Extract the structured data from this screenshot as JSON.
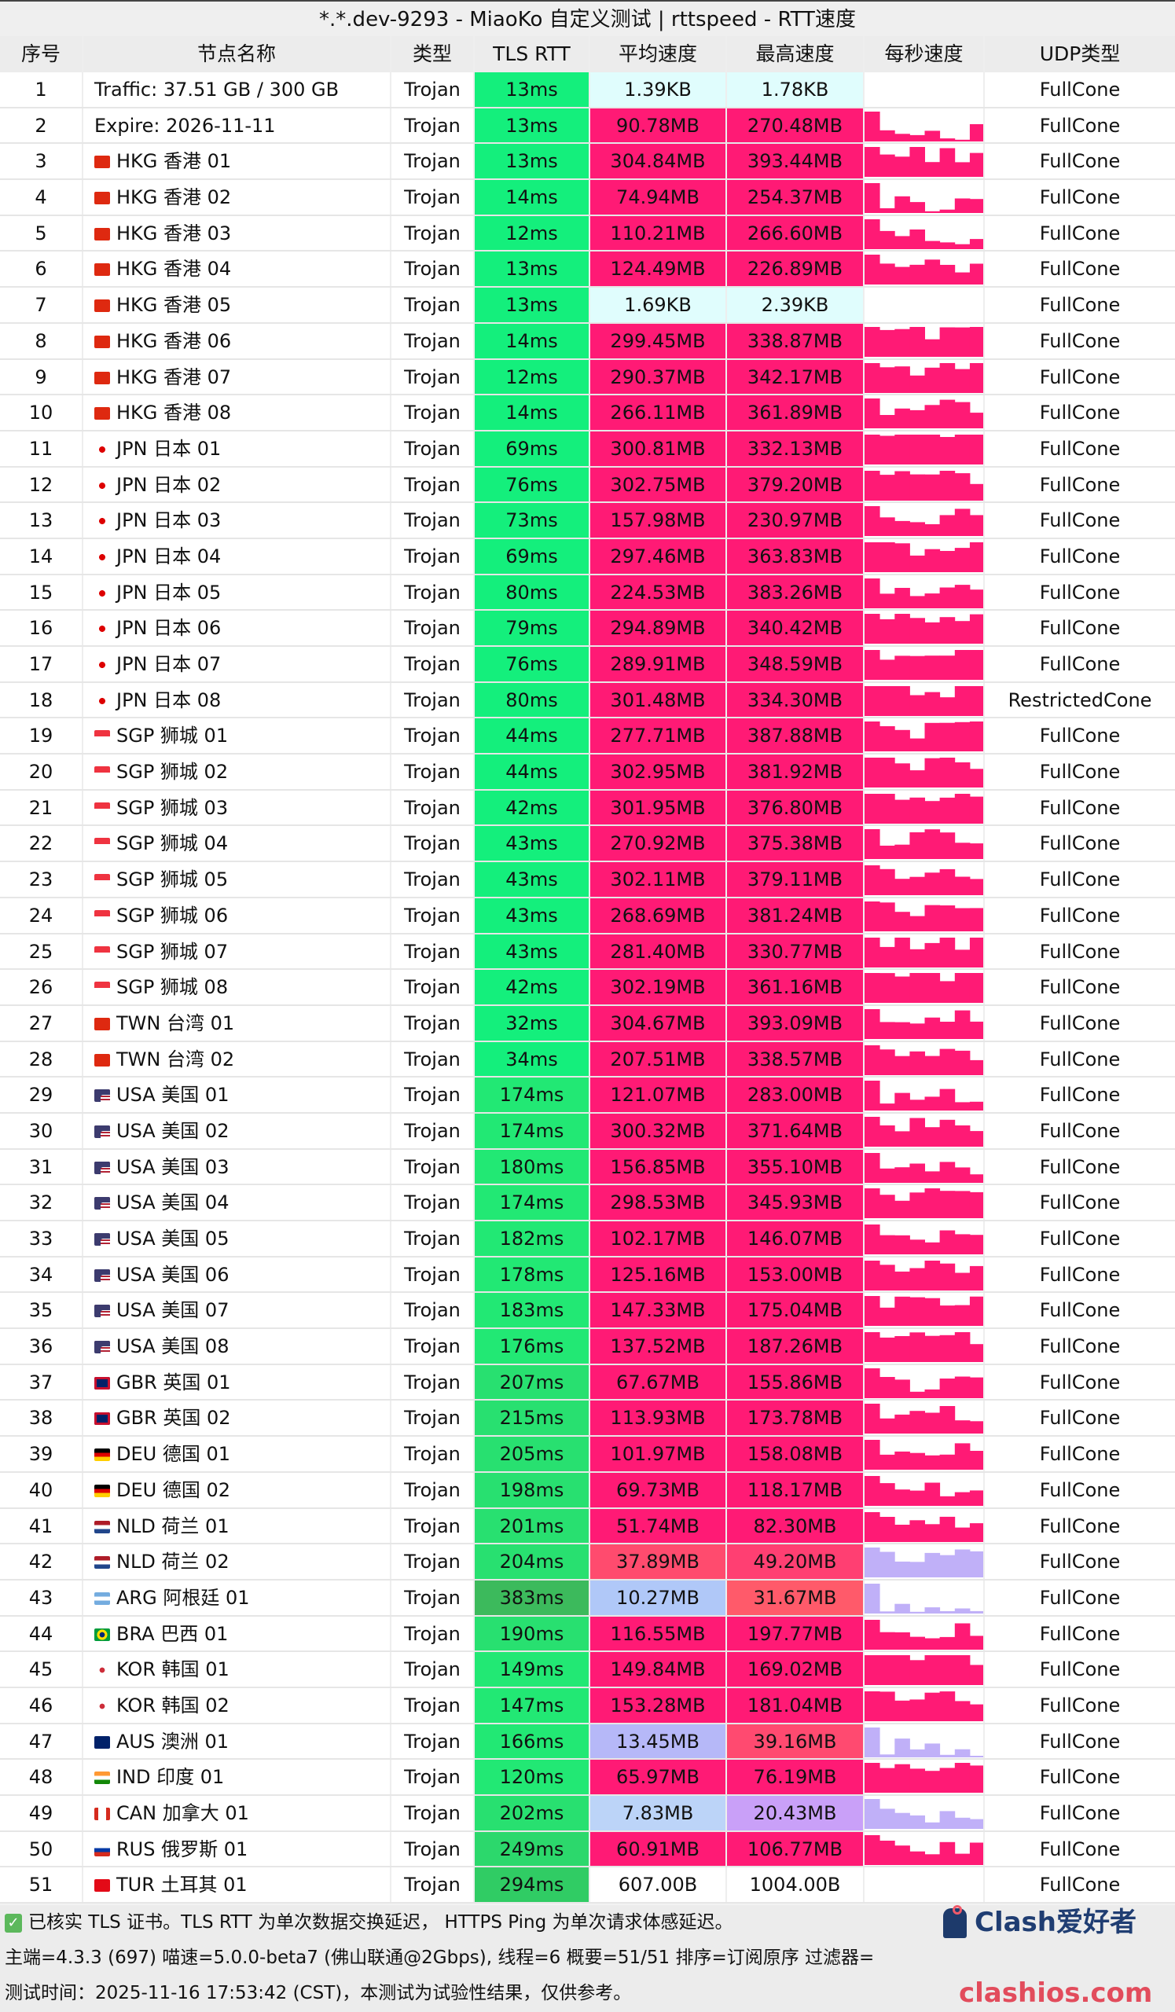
{
  "title": "*.*.dev-9293 - MiaoKo 自定义测试 | rttspeed - RTT速度",
  "headers": [
    "序号",
    "节点名称",
    "类型",
    "TLS RTT",
    "平均速度",
    "最高速度",
    "每秒速度",
    "UDP类型"
  ],
  "rows": [
    {
      "no": "1",
      "name": "Traffic: 37.51 GB / 300 GB",
      "flag": "",
      "type": "Trojan",
      "rtt": "13ms",
      "avg": "1.39KB",
      "max": "1.78KB",
      "udp": "FullCone",
      "rtt_color": "#14ef7c",
      "avg_color": "#e0fdfd",
      "max_color": "#e0fdfd"
    },
    {
      "no": "2",
      "name": "Expire: 2026-11-11",
      "flag": "",
      "type": "Trojan",
      "rtt": "13ms",
      "avg": "90.78MB",
      "max": "270.48MB",
      "udp": "FullCone",
      "rtt_color": "#14ef7c",
      "avg_color": "#ff1a75",
      "max_color": "#ff1a75"
    },
    {
      "no": "3",
      "name": "HKG 香港 01",
      "flag": "hk",
      "type": "Trojan",
      "rtt": "13ms",
      "avg": "304.84MB",
      "max": "393.44MB",
      "udp": "FullCone",
      "rtt_color": "#14ef7c",
      "avg_color": "#ff1a75",
      "max_color": "#ff1a75"
    },
    {
      "no": "4",
      "name": "HKG 香港 02",
      "flag": "hk",
      "type": "Trojan",
      "rtt": "14ms",
      "avg": "74.94MB",
      "max": "254.37MB",
      "udp": "FullCone",
      "rtt_color": "#14ef7c",
      "avg_color": "#ff1a75",
      "max_color": "#ff1a75"
    },
    {
      "no": "5",
      "name": "HKG 香港 03",
      "flag": "hk",
      "type": "Trojan",
      "rtt": "12ms",
      "avg": "110.21MB",
      "max": "266.60MB",
      "udp": "FullCone",
      "rtt_color": "#14ef7c",
      "avg_color": "#ff1a75",
      "max_color": "#ff1a75"
    },
    {
      "no": "6",
      "name": "HKG 香港 04",
      "flag": "hk",
      "type": "Trojan",
      "rtt": "13ms",
      "avg": "124.49MB",
      "max": "226.89MB",
      "udp": "FullCone",
      "rtt_color": "#14ef7c",
      "avg_color": "#ff1a75",
      "max_color": "#ff1a75"
    },
    {
      "no": "7",
      "name": "HKG 香港 05",
      "flag": "hk",
      "type": "Trojan",
      "rtt": "13ms",
      "avg": "1.69KB",
      "max": "2.39KB",
      "udp": "FullCone",
      "rtt_color": "#14ef7c",
      "avg_color": "#e0fdfd",
      "max_color": "#e0fdfd"
    },
    {
      "no": "8",
      "name": "HKG 香港 06",
      "flag": "hk",
      "type": "Trojan",
      "rtt": "14ms",
      "avg": "299.45MB",
      "max": "338.87MB",
      "udp": "FullCone",
      "rtt_color": "#14ef7c",
      "avg_color": "#ff1a75",
      "max_color": "#ff1a75"
    },
    {
      "no": "9",
      "name": "HKG 香港 07",
      "flag": "hk",
      "type": "Trojan",
      "rtt": "12ms",
      "avg": "290.37MB",
      "max": "342.17MB",
      "udp": "FullCone",
      "rtt_color": "#14ef7c",
      "avg_color": "#ff1a75",
      "max_color": "#ff1a75"
    },
    {
      "no": "10",
      "name": "HKG 香港 08",
      "flag": "hk",
      "type": "Trojan",
      "rtt": "14ms",
      "avg": "266.11MB",
      "max": "361.89MB",
      "udp": "FullCone",
      "rtt_color": "#14ef7c",
      "avg_color": "#ff1a75",
      "max_color": "#ff1a75"
    },
    {
      "no": "11",
      "name": "JPN 日本 01",
      "flag": "jp",
      "type": "Trojan",
      "rtt": "69ms",
      "avg": "300.81MB",
      "max": "332.13MB",
      "udp": "FullCone",
      "rtt_color": "#14ef7c",
      "avg_color": "#ff1a75",
      "max_color": "#ff1a75"
    },
    {
      "no": "12",
      "name": "JPN 日本 02",
      "flag": "jp",
      "type": "Trojan",
      "rtt": "76ms",
      "avg": "302.75MB",
      "max": "379.20MB",
      "udp": "FullCone",
      "rtt_color": "#14ef7c",
      "avg_color": "#ff1a75",
      "max_color": "#ff1a75"
    },
    {
      "no": "13",
      "name": "JPN 日本 03",
      "flag": "jp",
      "type": "Trojan",
      "rtt": "73ms",
      "avg": "157.98MB",
      "max": "230.97MB",
      "udp": "FullCone",
      "rtt_color": "#14ef7c",
      "avg_color": "#ff1a75",
      "max_color": "#ff1a75"
    },
    {
      "no": "14",
      "name": "JPN 日本 04",
      "flag": "jp",
      "type": "Trojan",
      "rtt": "69ms",
      "avg": "297.46MB",
      "max": "363.83MB",
      "udp": "FullCone",
      "rtt_color": "#14ef7c",
      "avg_color": "#ff1a75",
      "max_color": "#ff1a75"
    },
    {
      "no": "15",
      "name": "JPN 日本 05",
      "flag": "jp",
      "type": "Trojan",
      "rtt": "80ms",
      "avg": "224.53MB",
      "max": "383.26MB",
      "udp": "FullCone",
      "rtt_color": "#14ef7c",
      "avg_color": "#ff1a75",
      "max_color": "#ff1a75"
    },
    {
      "no": "16",
      "name": "JPN 日本 06",
      "flag": "jp",
      "type": "Trojan",
      "rtt": "79ms",
      "avg": "294.89MB",
      "max": "340.42MB",
      "udp": "FullCone",
      "rtt_color": "#14ef7c",
      "avg_color": "#ff1a75",
      "max_color": "#ff1a75"
    },
    {
      "no": "17",
      "name": "JPN 日本 07",
      "flag": "jp",
      "type": "Trojan",
      "rtt": "76ms",
      "avg": "289.91MB",
      "max": "348.59MB",
      "udp": "FullCone",
      "rtt_color": "#14ef7c",
      "avg_color": "#ff1a75",
      "max_color": "#ff1a75"
    },
    {
      "no": "18",
      "name": "JPN 日本 08",
      "flag": "jp",
      "type": "Trojan",
      "rtt": "80ms",
      "avg": "301.48MB",
      "max": "334.30MB",
      "udp": "RestrictedCone",
      "rtt_color": "#14ef7c",
      "avg_color": "#ff1a75",
      "max_color": "#ff1a75"
    },
    {
      "no": "19",
      "name": "SGP 狮城 01",
      "flag": "sg",
      "type": "Trojan",
      "rtt": "44ms",
      "avg": "277.71MB",
      "max": "387.88MB",
      "udp": "FullCone",
      "rtt_color": "#14ef7c",
      "avg_color": "#ff1a75",
      "max_color": "#ff1a75"
    },
    {
      "no": "20",
      "name": "SGP 狮城 02",
      "flag": "sg",
      "type": "Trojan",
      "rtt": "44ms",
      "avg": "302.95MB",
      "max": "381.92MB",
      "udp": "FullCone",
      "rtt_color": "#14ef7c",
      "avg_color": "#ff1a75",
      "max_color": "#ff1a75"
    },
    {
      "no": "21",
      "name": "SGP 狮城 03",
      "flag": "sg",
      "type": "Trojan",
      "rtt": "42ms",
      "avg": "301.95MB",
      "max": "376.80MB",
      "udp": "FullCone",
      "rtt_color": "#14ef7c",
      "avg_color": "#ff1a75",
      "max_color": "#ff1a75"
    },
    {
      "no": "22",
      "name": "SGP 狮城 04",
      "flag": "sg",
      "type": "Trojan",
      "rtt": "43ms",
      "avg": "270.92MB",
      "max": "375.38MB",
      "udp": "FullCone",
      "rtt_color": "#14ef7c",
      "avg_color": "#ff1a75",
      "max_color": "#ff1a75"
    },
    {
      "no": "23",
      "name": "SGP 狮城 05",
      "flag": "sg",
      "type": "Trojan",
      "rtt": "43ms",
      "avg": "302.11MB",
      "max": "379.11MB",
      "udp": "FullCone",
      "rtt_color": "#14ef7c",
      "avg_color": "#ff1a75",
      "max_color": "#ff1a75"
    },
    {
      "no": "24",
      "name": "SGP 狮城 06",
      "flag": "sg",
      "type": "Trojan",
      "rtt": "43ms",
      "avg": "268.69MB",
      "max": "381.24MB",
      "udp": "FullCone",
      "rtt_color": "#14ef7c",
      "avg_color": "#ff1a75",
      "max_color": "#ff1a75"
    },
    {
      "no": "25",
      "name": "SGP 狮城 07",
      "flag": "sg",
      "type": "Trojan",
      "rtt": "43ms",
      "avg": "281.40MB",
      "max": "330.77MB",
      "udp": "FullCone",
      "rtt_color": "#14ef7c",
      "avg_color": "#ff1a75",
      "max_color": "#ff1a75"
    },
    {
      "no": "26",
      "name": "SGP 狮城 08",
      "flag": "sg",
      "type": "Trojan",
      "rtt": "42ms",
      "avg": "302.19MB",
      "max": "361.16MB",
      "udp": "FullCone",
      "rtt_color": "#14ef7c",
      "avg_color": "#ff1a75",
      "max_color": "#ff1a75"
    },
    {
      "no": "27",
      "name": "TWN 台湾 01",
      "flag": "cn",
      "type": "Trojan",
      "rtt": "32ms",
      "avg": "304.67MB",
      "max": "393.09MB",
      "udp": "FullCone",
      "rtt_color": "#14ef7c",
      "avg_color": "#ff1a75",
      "max_color": "#ff1a75"
    },
    {
      "no": "28",
      "name": "TWN 台湾 02",
      "flag": "cn",
      "type": "Trojan",
      "rtt": "34ms",
      "avg": "207.51MB",
      "max": "338.57MB",
      "udp": "FullCone",
      "rtt_color": "#14ef7c",
      "avg_color": "#ff1a75",
      "max_color": "#ff1a75"
    },
    {
      "no": "29",
      "name": "USA 美国 01",
      "flag": "us",
      "type": "Trojan",
      "rtt": "174ms",
      "avg": "121.07MB",
      "max": "283.00MB",
      "udp": "FullCone",
      "rtt_color": "#22e874",
      "avg_color": "#ff1a75",
      "max_color": "#ff1a75"
    },
    {
      "no": "30",
      "name": "USA 美国 02",
      "flag": "us",
      "type": "Trojan",
      "rtt": "174ms",
      "avg": "300.32MB",
      "max": "371.64MB",
      "udp": "FullCone",
      "rtt_color": "#22e874",
      "avg_color": "#ff1a75",
      "max_color": "#ff1a75"
    },
    {
      "no": "31",
      "name": "USA 美国 03",
      "flag": "us",
      "type": "Trojan",
      "rtt": "180ms",
      "avg": "156.85MB",
      "max": "355.10MB",
      "udp": "FullCone",
      "rtt_color": "#22e874",
      "avg_color": "#ff1a75",
      "max_color": "#ff1a75"
    },
    {
      "no": "32",
      "name": "USA 美国 04",
      "flag": "us",
      "type": "Trojan",
      "rtt": "174ms",
      "avg": "298.53MB",
      "max": "345.93MB",
      "udp": "FullCone",
      "rtt_color": "#22e874",
      "avg_color": "#ff1a75",
      "max_color": "#ff1a75"
    },
    {
      "no": "33",
      "name": "USA 美国 05",
      "flag": "us",
      "type": "Trojan",
      "rtt": "182ms",
      "avg": "102.17MB",
      "max": "146.07MB",
      "udp": "FullCone",
      "rtt_color": "#22e874",
      "avg_color": "#ff1a75",
      "max_color": "#ff1a75"
    },
    {
      "no": "34",
      "name": "USA 美国 06",
      "flag": "us",
      "type": "Trojan",
      "rtt": "178ms",
      "avg": "125.16MB",
      "max": "153.00MB",
      "udp": "FullCone",
      "rtt_color": "#22e874",
      "avg_color": "#ff1a75",
      "max_color": "#ff1a75"
    },
    {
      "no": "35",
      "name": "USA 美国 07",
      "flag": "us",
      "type": "Trojan",
      "rtt": "183ms",
      "avg": "147.33MB",
      "max": "175.04MB",
      "udp": "FullCone",
      "rtt_color": "#22e874",
      "avg_color": "#ff1a75",
      "max_color": "#ff1a75"
    },
    {
      "no": "36",
      "name": "USA 美国 08",
      "flag": "us",
      "type": "Trojan",
      "rtt": "176ms",
      "avg": "137.52MB",
      "max": "187.26MB",
      "udp": "FullCone",
      "rtt_color": "#22e874",
      "avg_color": "#ff1a75",
      "max_color": "#ff1a75"
    },
    {
      "no": "37",
      "name": "GBR 英国 01",
      "flag": "gb",
      "type": "Trojan",
      "rtt": "207ms",
      "avg": "67.67MB",
      "max": "155.86MB",
      "udp": "FullCone",
      "rtt_color": "#28e070",
      "avg_color": "#ff1a75",
      "max_color": "#ff1a75"
    },
    {
      "no": "38",
      "name": "GBR 英国 02",
      "flag": "gb",
      "type": "Trojan",
      "rtt": "215ms",
      "avg": "113.93MB",
      "max": "173.78MB",
      "udp": "FullCone",
      "rtt_color": "#28e070",
      "avg_color": "#ff1a75",
      "max_color": "#ff1a75"
    },
    {
      "no": "39",
      "name": "DEU 德国 01",
      "flag": "de",
      "type": "Trojan",
      "rtt": "205ms",
      "avg": "101.97MB",
      "max": "158.08MB",
      "udp": "FullCone",
      "rtt_color": "#28e070",
      "avg_color": "#ff1a75",
      "max_color": "#ff1a75"
    },
    {
      "no": "40",
      "name": "DEU 德国 02",
      "flag": "de",
      "type": "Trojan",
      "rtt": "198ms",
      "avg": "69.73MB",
      "max": "118.17MB",
      "udp": "FullCone",
      "rtt_color": "#28e070",
      "avg_color": "#ff1a75",
      "max_color": "#ff1a75"
    },
    {
      "no": "41",
      "name": "NLD 荷兰 01",
      "flag": "nl",
      "type": "Trojan",
      "rtt": "201ms",
      "avg": "51.74MB",
      "max": "82.30MB",
      "udp": "FullCone",
      "rtt_color": "#28e070",
      "avg_color": "#ff1a75",
      "max_color": "#ff1a75"
    },
    {
      "no": "42",
      "name": "NLD 荷兰 02",
      "flag": "nl",
      "type": "Trojan",
      "rtt": "204ms",
      "avg": "37.89MB",
      "max": "49.20MB",
      "udp": "FullCone",
      "rtt_color": "#28e070",
      "avg_color": "#ff4b6e",
      "max_color": "#ff3f72"
    },
    {
      "no": "43",
      "name": "ARG 阿根廷 01",
      "flag": "ar",
      "type": "Trojan",
      "rtt": "383ms",
      "avg": "10.27MB",
      "max": "31.67MB",
      "udp": "FullCone",
      "rtt_color": "#3cba5c",
      "avg_color": "#b0c8f8",
      "max_color": "#ff5a6a"
    },
    {
      "no": "44",
      "name": "BRA 巴西 01",
      "flag": "br",
      "type": "Trojan",
      "rtt": "190ms",
      "avg": "116.55MB",
      "max": "197.77MB",
      "udp": "FullCone",
      "rtt_color": "#28e070",
      "avg_color": "#ff1a75",
      "max_color": "#ff1a75"
    },
    {
      "no": "45",
      "name": "KOR 韩国 01",
      "flag": "kr",
      "type": "Trojan",
      "rtt": "149ms",
      "avg": "149.84MB",
      "max": "169.02MB",
      "udp": "FullCone",
      "rtt_color": "#22e874",
      "avg_color": "#ff1a75",
      "max_color": "#ff1a75"
    },
    {
      "no": "46",
      "name": "KOR 韩国 02",
      "flag": "kr",
      "type": "Trojan",
      "rtt": "147ms",
      "avg": "153.28MB",
      "max": "181.04MB",
      "udp": "FullCone",
      "rtt_color": "#22e874",
      "avg_color": "#ff1a75",
      "max_color": "#ff1a75"
    },
    {
      "no": "47",
      "name": "AUS 澳洲 01",
      "flag": "au",
      "type": "Trojan",
      "rtt": "166ms",
      "avg": "13.45MB",
      "max": "39.16MB",
      "udp": "FullCone",
      "rtt_color": "#22e874",
      "avg_color": "#b6b8f8",
      "max_color": "#ff4a70"
    },
    {
      "no": "48",
      "name": "IND 印度 01",
      "flag": "in",
      "type": "Trojan",
      "rtt": "120ms",
      "avg": "65.97MB",
      "max": "76.19MB",
      "udp": "FullCone",
      "rtt_color": "#22e874",
      "avg_color": "#ff1a75",
      "max_color": "#ff1a75"
    },
    {
      "no": "49",
      "name": "CAN 加拿大 01",
      "flag": "ca",
      "type": "Trojan",
      "rtt": "202ms",
      "avg": "7.83MB",
      "max": "20.43MB",
      "udp": "FullCone",
      "rtt_color": "#28e070",
      "avg_color": "#bcd4f8",
      "max_color": "#c9a0f8"
    },
    {
      "no": "50",
      "name": "RUS 俄罗斯 01",
      "flag": "ru",
      "type": "Trojan",
      "rtt": "249ms",
      "avg": "60.91MB",
      "max": "106.77MB",
      "udp": "FullCone",
      "rtt_color": "#2cd86c",
      "avg_color": "#ff1a75",
      "max_color": "#ff1a75"
    },
    {
      "no": "51",
      "name": "TUR 土耳其 01",
      "flag": "tr",
      "type": "Trojan",
      "rtt": "294ms",
      "avg": "607.00B",
      "max": "1004.00B",
      "udp": "FullCone",
      "rtt_color": "#30cc64",
      "avg_color": "#ffffff",
      "max_color": "#ffffff"
    }
  ],
  "footer": {
    "line1": "已核实 TLS 证书。TLS RTT 为单次数据交换延迟， HTTPS Ping 为单次请求体感延迟。",
    "line2": "主端=4.3.3 (697) 喵速=5.0.0-beta7 (佛山联通@2Gbps), 线程=6 概要=51/51 排序=订阅原序 过滤器=",
    "line3": "测试时间：2025-11-16 17:53:42 (CST)，本测试为试验性结果，仅供参考。"
  },
  "watermark": {
    "line1": "Clash爱好者",
    "line2": "clashios.com"
  },
  "colors": {
    "speed_high": "#ff1a75",
    "rtt_low": "#14ef7c",
    "header_bg": "#ececec"
  }
}
